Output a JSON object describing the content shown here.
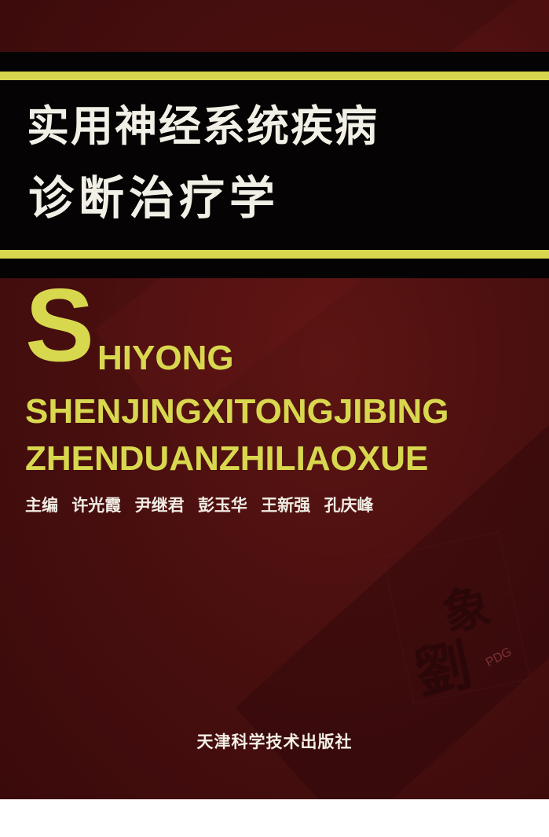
{
  "cover": {
    "title_line1": "实用神经系统疾病",
    "title_line2": "诊断治疗学",
    "pinyin": {
      "initial": "S",
      "line1_rest": "HIYONG",
      "line2": "SHENJINGXITONGJIBING",
      "line3": "ZHENDUANZHILIAOXUE"
    },
    "editors": {
      "role": "主编",
      "names": [
        "许光霞",
        "尹继君",
        "彭玉华",
        "王新强",
        "孔庆峰"
      ]
    },
    "watermark": {
      "text": "PDG",
      "seal_chars": [
        "劉",
        "象"
      ]
    },
    "publisher": "天津科学技术出版社"
  },
  "colors": {
    "background": "#4a0f0f",
    "band": "#050303",
    "accent_yellow": "#d7d64e",
    "title_text": "#f2efe6"
  }
}
